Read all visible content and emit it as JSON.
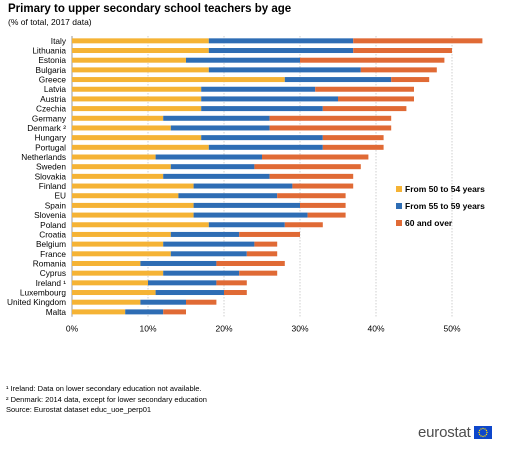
{
  "title": "Primary to upper secondary school teachers by age",
  "subtitle": "(% of total, 2017 data)",
  "chart_data": {
    "type": "bar",
    "orientation": "horizontal",
    "stacked": true,
    "categories": [
      "Italy",
      "Lithuania",
      "Estonia",
      "Bulgaria",
      "Greece",
      "Latvia",
      "Austria",
      "Czechia",
      "Germany",
      "Denmark ²",
      "Hungary",
      "Portugal",
      "Netherlands",
      "Sweden",
      "Slovakia",
      "Finland",
      "EU",
      "Spain",
      "Slovenia",
      "Poland",
      "Croatia",
      "Belgium",
      "France",
      "Romania",
      "Cyprus",
      "Ireland ¹",
      "Luxembourg",
      "United Kingdom",
      "Malta"
    ],
    "series": [
      {
        "name": "From 50 to 54 years",
        "color": "#f5b335",
        "values": [
          18,
          18,
          15,
          18,
          28,
          17,
          17,
          17,
          12,
          13,
          17,
          18,
          11,
          13,
          12,
          16,
          14,
          16,
          16,
          18,
          13,
          12,
          13,
          9,
          12,
          10,
          11,
          9,
          7
        ]
      },
      {
        "name": "From 55 to 59 years",
        "color": "#2e6db4",
        "values": [
          19,
          19,
          15,
          20,
          14,
          15,
          18,
          16,
          14,
          13,
          16,
          15,
          14,
          11,
          14,
          13,
          13,
          14,
          15,
          10,
          9,
          12,
          10,
          10,
          10,
          9,
          9,
          6,
          5
        ]
      },
      {
        "name": "60 and over",
        "color": "#e06a35",
        "values": [
          17,
          13,
          19,
          10,
          5,
          13,
          10,
          11,
          16,
          16,
          8,
          8,
          14,
          14,
          11,
          8,
          9,
          6,
          5,
          5,
          8,
          3,
          4,
          9,
          5,
          4,
          3,
          4,
          3
        ]
      }
    ],
    "xlim": [
      0,
      55
    ],
    "xticks": [
      0,
      10,
      20,
      30,
      40,
      50
    ],
    "xtick_labels": [
      "0%",
      "10%",
      "20%",
      "30%",
      "40%",
      "50%"
    ],
    "grid": true,
    "legend_position": "right"
  },
  "notes": [
    "¹ Ireland: Data on lower secondary education not available.",
    "² Denmark: 2014 data, except for lower secondary education",
    "Source: Eurostat dataset educ_uoe_perp01"
  ],
  "logo": {
    "text": "eurostat",
    "flag_color": "#0e47cb",
    "star_color": "#ffdd00"
  }
}
